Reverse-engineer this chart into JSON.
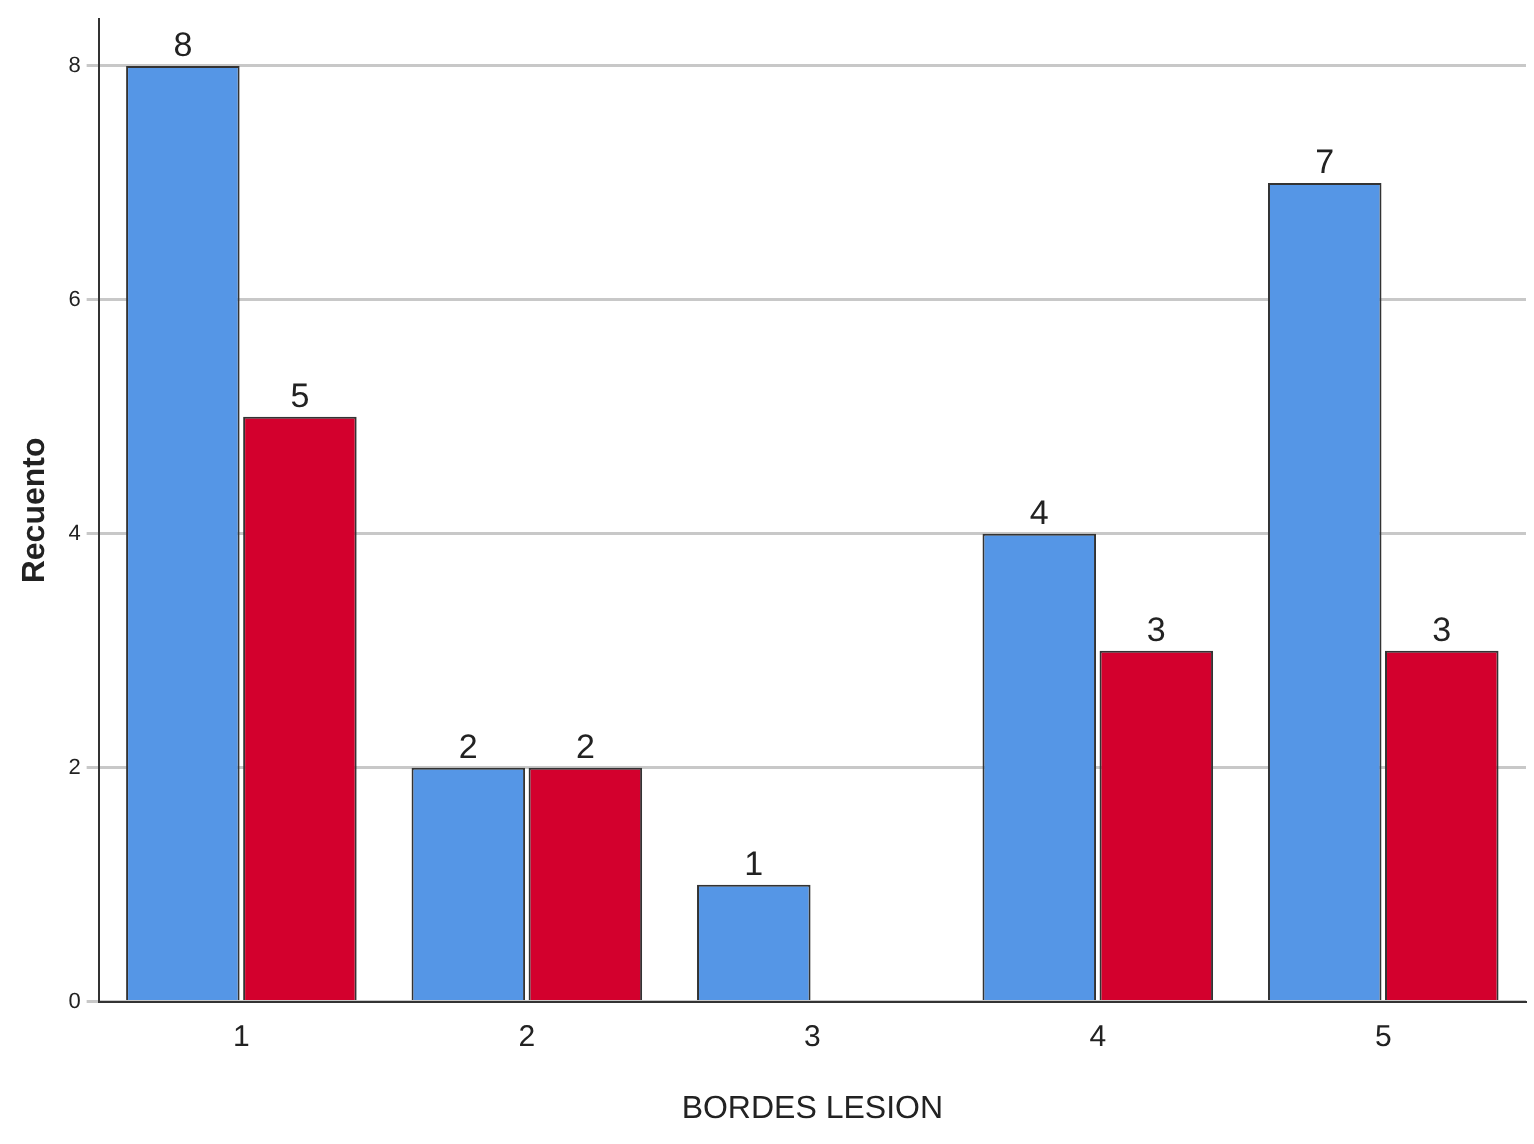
{
  "chart_data": {
    "type": "bar",
    "xlabel": "BORDES LESION",
    "ylabel": "Recuento",
    "categories": [
      "1",
      "2",
      "3",
      "4",
      "5"
    ],
    "series": [
      {
        "color": "#5596e6",
        "values": [
          8,
          2,
          1,
          4,
          7
        ]
      },
      {
        "color": "#d3002d",
        "values": [
          5,
          2,
          null,
          3,
          3
        ]
      }
    ],
    "ylim": [
      0,
      8.4
    ],
    "yticks": [
      0,
      2,
      4,
      6,
      8
    ],
    "grid": "y",
    "legend": false,
    "data_labels": true
  }
}
